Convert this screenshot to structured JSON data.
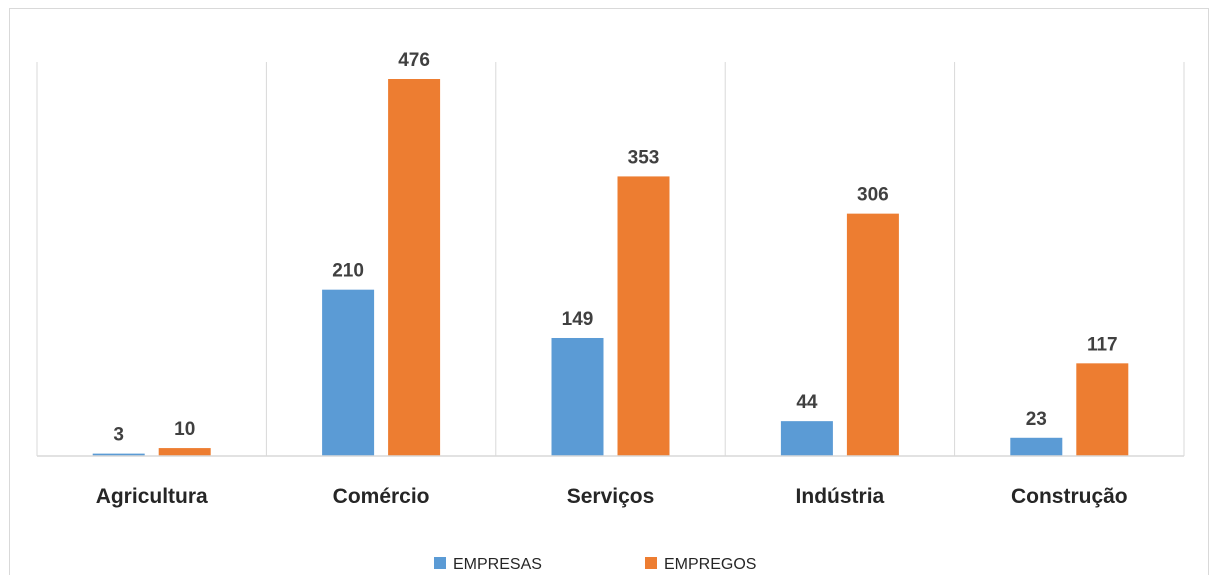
{
  "chart_data": {
    "type": "bar",
    "title": "",
    "xlabel": "",
    "ylabel": "",
    "categories": [
      "Agricultura",
      "Comércio",
      "Serviços",
      "Indústria",
      "Construção"
    ],
    "series": [
      {
        "name": "EMPRESAS",
        "color": "#5b9bd5",
        "values": [
          3,
          210,
          149,
          44,
          23
        ]
      },
      {
        "name": "EMPREGOS",
        "color": "#ed7d31",
        "values": [
          10,
          476,
          353,
          306,
          117
        ]
      }
    ],
    "ylim": [
      0,
      500
    ],
    "grid": "vertical category separators",
    "legend": "bottom-center",
    "data_labels": true
  }
}
